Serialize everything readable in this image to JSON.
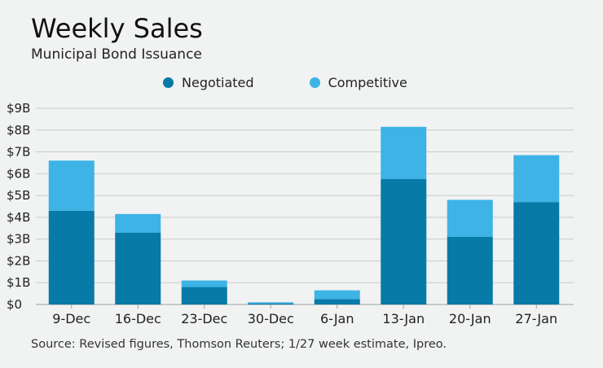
{
  "title": "Weekly Sales",
  "subtitle": "Municipal Bond Issuance",
  "source": "Source: Revised figures, Thomson Reuters; 1/27 week estimate, Ipreo.",
  "colors": {
    "negotiated": "#077aa8",
    "competitive": "#3db3e6",
    "grid": "#c9cccc",
    "background": "#f1f2f2"
  },
  "chart_data": {
    "type": "bar",
    "stacked": true,
    "title": "Weekly Sales",
    "subtitle": "Municipal Bond Issuance",
    "xlabel": "",
    "ylabel": "",
    "categories": [
      "9-Dec",
      "16-Dec",
      "23-Dec",
      "30-Dec",
      "6-Jan",
      "13-Jan",
      "20-Jan",
      "27-Jan"
    ],
    "series": [
      {
        "name": "Negotiated",
        "color": "#077aa8",
        "values": [
          4.3,
          3.3,
          0.8,
          0.05,
          0.25,
          5.75,
          3.1,
          4.7
        ]
      },
      {
        "name": "Competitive",
        "color": "#3db3e6",
        "values": [
          2.3,
          0.85,
          0.3,
          0.05,
          0.4,
          2.4,
          1.7,
          2.15
        ]
      }
    ],
    "ylim": [
      0,
      9
    ],
    "yticks": [
      0,
      1,
      2,
      3,
      4,
      5,
      6,
      7,
      8,
      9
    ],
    "ytick_labels": [
      "$0",
      "$1B",
      "$2B",
      "$3B",
      "$4B",
      "$5B",
      "$6B",
      "$7B",
      "$8B",
      "$9B"
    ],
    "grid": true,
    "legend": "top"
  }
}
